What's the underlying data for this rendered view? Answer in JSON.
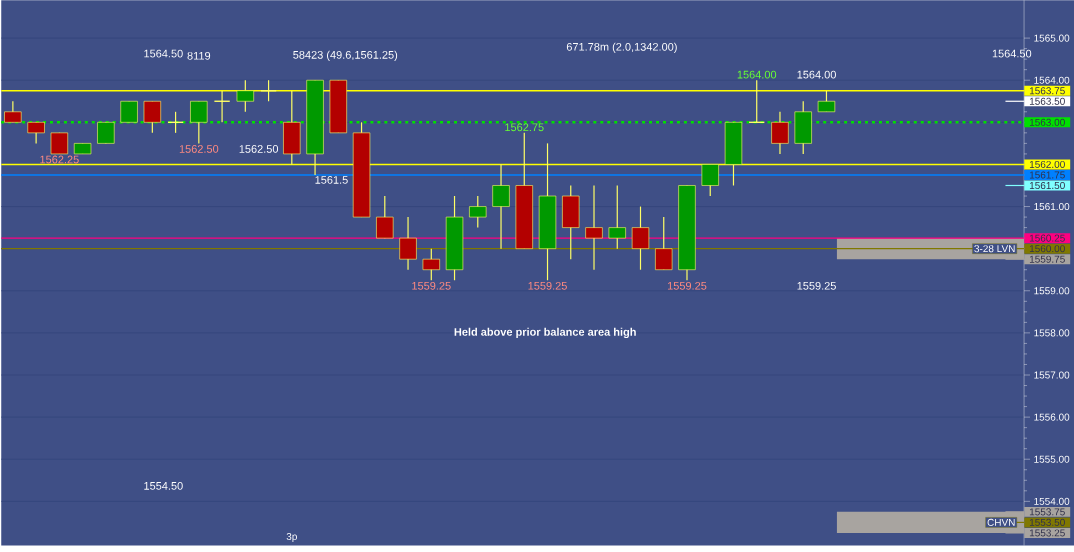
{
  "chart_data": {
    "type": "candlestick",
    "categories": [
      null,
      null,
      null,
      null,
      null,
      null,
      null,
      null,
      null,
      null,
      null,
      null,
      "3p",
      null,
      null,
      null,
      null,
      null,
      null,
      null,
      null,
      null,
      null,
      null,
      null,
      null,
      null,
      null,
      null,
      null,
      null,
      null,
      null,
      null,
      null,
      null,
      null,
      null,
      null,
      null,
      null,
      null,
      null,
      null
    ],
    "ohlc": [
      [
        1563.25,
        1563.5,
        1563.0,
        1563.0
      ],
      [
        1563.0,
        1563.0,
        1562.5,
        1562.75
      ],
      [
        1562.75,
        1562.75,
        1562.25,
        1562.25
      ],
      [
        1562.25,
        1562.5,
        1562.25,
        1562.5
      ],
      [
        1562.5,
        1563.0,
        1562.5,
        1563.0
      ],
      [
        1563.0,
        1563.5,
        1563.0,
        1563.5
      ],
      [
        1563.5,
        1563.5,
        1562.75,
        1563.0
      ],
      [
        1563.0,
        1563.25,
        1562.75,
        1563.0
      ],
      [
        1563.0,
        1563.5,
        1562.5,
        1563.5
      ],
      [
        1563.5,
        1563.75,
        1563.0,
        1563.5
      ],
      [
        1563.5,
        1564.0,
        1563.25,
        1563.75
      ],
      [
        1563.75,
        1564.0,
        1563.5,
        1563.75
      ],
      [
        1563.0,
        1563.75,
        1562.0,
        1562.25
      ],
      [
        1562.25,
        1564.0,
        1561.75,
        1564.0
      ],
      [
        1564.0,
        1564.0,
        1562.75,
        1562.75
      ],
      [
        1562.75,
        1563.0,
        1560.75,
        1560.75
      ],
      [
        1560.75,
        1561.25,
        1560.25,
        1560.25
      ],
      [
        1560.25,
        1560.75,
        1559.5,
        1559.75
      ],
      [
        1559.75,
        1560.0,
        1559.25,
        1559.5
      ],
      [
        1559.5,
        1561.25,
        1559.25,
        1560.75
      ],
      [
        1560.75,
        1561.25,
        1560.5,
        1561.0
      ],
      [
        1561.0,
        1562.0,
        1560.0,
        1561.5
      ],
      [
        1561.5,
        1562.75,
        1560.0,
        1560.0
      ],
      [
        1560.0,
        1562.5,
        1559.25,
        1561.25
      ],
      [
        1561.25,
        1561.5,
        1559.75,
        1560.5
      ],
      [
        1560.5,
        1561.5,
        1559.5,
        1560.25
      ],
      [
        1560.25,
        1561.5,
        1560.0,
        1560.5
      ],
      [
        1560.5,
        1561.0,
        1559.5,
        1560.0
      ],
      [
        1560.0,
        1560.75,
        1559.5,
        1559.5
      ],
      [
        1559.5,
        1561.5,
        1559.25,
        1561.5
      ],
      [
        1561.5,
        1562.0,
        1561.25,
        1562.0
      ],
      [
        1562.0,
        1563.0,
        1561.5,
        1563.0
      ],
      [
        1563.0,
        1564.0,
        1563.0,
        1563.0
      ],
      [
        1563.0,
        1563.25,
        1562.25,
        1562.5
      ],
      [
        1562.5,
        1563.5,
        1562.25,
        1563.25
      ],
      [
        1563.25,
        1563.75,
        1563.25,
        1563.5
      ],
      null,
      null,
      null,
      null,
      null,
      null,
      null,
      null
    ],
    "colors": [
      "#b30000",
      "#b30000",
      "#b30000",
      "#009900",
      "#009900",
      "#009900",
      "#b30000",
      "#ffff66",
      "#009900",
      "#ffff66",
      "#009900",
      "#ffff66",
      "#b30000",
      "#009900",
      "#b30000",
      "#b30000",
      "#b30000",
      "#b30000",
      "#b30000",
      "#009900",
      "#009900",
      "#009900",
      "#b30000",
      "#009900",
      "#b30000",
      "#b30000",
      "#009900",
      "#b30000",
      "#b30000",
      "#009900",
      "#009900",
      "#009900",
      "#ffff66",
      "#b30000",
      "#009900",
      "#009900",
      null,
      null,
      null,
      null,
      null,
      null,
      null,
      null
    ],
    "ylim": [
      1552.95,
      1565.9
    ],
    "yticks": [
      {
        "value": 1554,
        "label": "1554.00"
      },
      {
        "value": 1555,
        "label": "1555.00"
      },
      {
        "value": 1556,
        "label": "1556.00"
      },
      {
        "value": 1557,
        "label": "1557.00"
      },
      {
        "value": 1558,
        "label": "1558.00"
      },
      {
        "value": 1559,
        "label": "1559.00"
      },
      {
        "value": 1560,
        "label": null
      },
      {
        "value": 1561,
        "label": "1561.00"
      },
      {
        "value": 1562,
        "label": null
      },
      {
        "value": 1563,
        "label": null
      },
      {
        "value": 1564,
        "label": "1564.00"
      },
      {
        "value": 1565,
        "label": "1565.00"
      }
    ],
    "grid": "y",
    "ref_lines": [
      {
        "axis": "y",
        "value": 1563.75,
        "label": "1563.75",
        "color": "#ffff00",
        "line_style": "solid"
      },
      {
        "axis": "y",
        "value": 1563.5,
        "label": "1563.50",
        "color": "#ffffff"
      },
      {
        "axis": "y",
        "value": 1563.0,
        "label": "1563.00",
        "color": "#00e000",
        "line_style": "dotted"
      },
      {
        "axis": "y",
        "value": 1562.0,
        "label": "1562.00",
        "color": "#ffff00",
        "line_style": "solid"
      },
      {
        "axis": "y",
        "value": 1561.75,
        "label": "1561.75",
        "color": "#0080ff",
        "line_style": "solid"
      },
      {
        "axis": "y",
        "value": 1561.5,
        "label": "1561.50",
        "color": "#80ffff"
      },
      {
        "axis": "y",
        "value": 1560.25,
        "label": "1560.25",
        "color": "#ff0080",
        "line_style": "solid"
      },
      {
        "axis": "y",
        "value": 1560.0,
        "label": "1560.00",
        "color": "#807800",
        "line_style": "solid"
      },
      {
        "axis": "y",
        "value": 1559.75,
        "label": "1559.75",
        "color": "#a8a4a0"
      },
      {
        "axis": "y",
        "value": 1553.75,
        "label": "1553.75",
        "color": "#a8a4a0"
      },
      {
        "axis": "y",
        "value": 1553.5,
        "label": "1553.50",
        "color": "#807800"
      },
      {
        "axis": "y",
        "value": 1553.25,
        "label": "1553.25",
        "color": "#a8a4a0"
      }
    ],
    "bands": [
      {
        "axis": "y",
        "from": 1559.75,
        "to": 1560.25,
        "label": "3-28 LVN",
        "color": "#a8a4a0"
      },
      {
        "axis": "y",
        "from": 1553.25,
        "to": 1553.75,
        "label": "CHVN",
        "color": "#a8a4a0"
      }
    ],
    "annotations": [
      "Held above prior balance area high",
      "671.78m (2.0,1342.00)",
      "58423 (49.6,1561.25)",
      "8119",
      "1564.50",
      "1564.50",
      "1554.50",
      "1564.00",
      "1564.00",
      "1562.75",
      "1559.25",
      "1559.25",
      "1559.25",
      "1559.25",
      "1562.25",
      "1562.50",
      "1562.50",
      "1561.5"
    ]
  }
}
